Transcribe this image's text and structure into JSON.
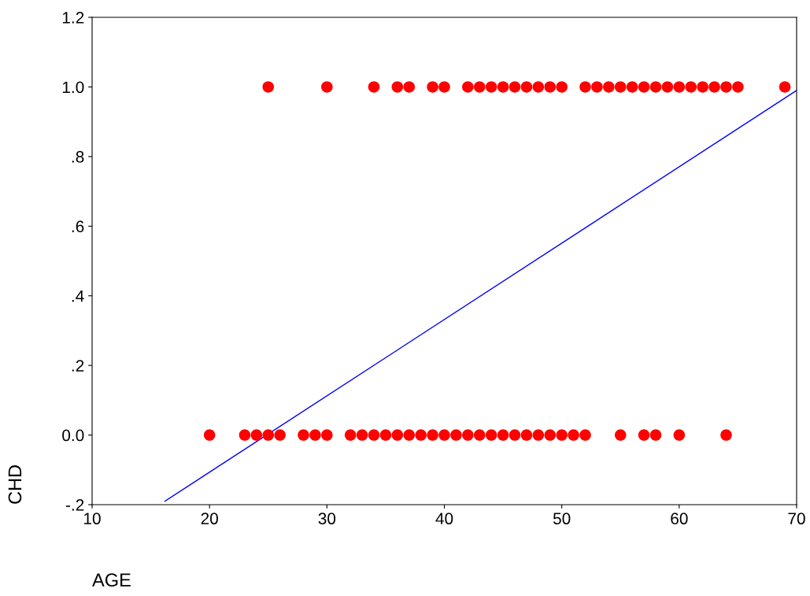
{
  "chart_data": {
    "type": "scatter",
    "xlabel": "AGE",
    "ylabel": "CHD",
    "xlim": [
      10,
      70
    ],
    "xticks": [
      10,
      20,
      30,
      40,
      50,
      60,
      70
    ],
    "ylim": [
      -0.2,
      1.2
    ],
    "yticks": [
      {
        "value": -0.2,
        "label": "-.2"
      },
      {
        "value": 0,
        "label": "0.0"
      },
      {
        "value": 0.2,
        "label": ".2"
      },
      {
        "value": 0.4,
        "label": ".4"
      },
      {
        "value": 0.6,
        "label": ".6"
      },
      {
        "value": 0.8,
        "label": ".8"
      },
      {
        "value": 1.0,
        "label": "1.0"
      },
      {
        "value": 1.2,
        "label": "1.2"
      }
    ],
    "grid": false,
    "legend": false,
    "marker": "circle",
    "series": [
      {
        "color": "#ff0000",
        "x": [
          25,
          30,
          34,
          36,
          37,
          39,
          40,
          42,
          43,
          44,
          45,
          46,
          47,
          48,
          49,
          50,
          52,
          53,
          54,
          55,
          56,
          57,
          58,
          59,
          60,
          61,
          62,
          63,
          64,
          65,
          69
        ],
        "values": [
          1,
          1,
          1,
          1,
          1,
          1,
          1,
          1,
          1,
          1,
          1,
          1,
          1,
          1,
          1,
          1,
          1,
          1,
          1,
          1,
          1,
          1,
          1,
          1,
          1,
          1,
          1,
          1,
          1,
          1,
          1
        ]
      },
      {
        "color": "#ff0000",
        "x": [
          20,
          23,
          24,
          25,
          26,
          28,
          29,
          30,
          32,
          33,
          34,
          35,
          36,
          37,
          38,
          39,
          40,
          41,
          42,
          43,
          44,
          45,
          46,
          47,
          48,
          49,
          50,
          51,
          52,
          55,
          57,
          58,
          60,
          64
        ],
        "values": [
          0,
          0,
          0,
          0,
          0,
          0,
          0,
          0,
          0,
          0,
          0,
          0,
          0,
          0,
          0,
          0,
          0,
          0,
          0,
          0,
          0,
          0,
          0,
          0,
          0,
          0,
          0,
          0,
          0,
          0,
          0,
          0,
          0,
          0
        ]
      },
      {
        "type": "line",
        "color": "#0000ff",
        "x": [
          16.2,
          70
        ],
        "values": [
          -0.19,
          0.99
        ],
        "marker": "none",
        "line_style": "solid"
      }
    ]
  }
}
